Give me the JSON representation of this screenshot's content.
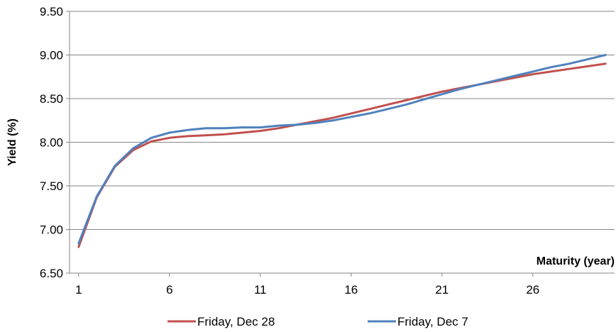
{
  "chart_data": {
    "type": "line",
    "title": "",
    "xlabel": "Maturity (year)",
    "ylabel": "Yield (%)",
    "xlim": [
      0.5,
      30.5
    ],
    "ylim": [
      6.5,
      9.5
    ],
    "x_ticks": [
      1,
      6,
      11,
      16,
      21,
      26
    ],
    "y_ticks": [
      6.5,
      7.0,
      7.5,
      8.0,
      8.5,
      9.0,
      9.5
    ],
    "y_tick_labels": [
      "6.50",
      "7.00",
      "7.50",
      "8.00",
      "8.50",
      "9.00",
      "9.50"
    ],
    "grid": "horizontal",
    "legend_position": "bottom",
    "series": [
      {
        "name": "Friday, Dec 28",
        "color": "#c0504d",
        "x": [
          1,
          2,
          3,
          4,
          5,
          6,
          7,
          8,
          9,
          10,
          11,
          12,
          13,
          14,
          15,
          16,
          17,
          18,
          19,
          20,
          21,
          22,
          23,
          24,
          25,
          26,
          27,
          28,
          29,
          30
        ],
        "y": [
          6.8,
          7.37,
          7.72,
          7.91,
          8.01,
          8.05,
          8.07,
          8.08,
          8.09,
          8.11,
          8.13,
          8.16,
          8.2,
          8.24,
          8.28,
          8.33,
          8.38,
          8.43,
          8.48,
          8.53,
          8.58,
          8.62,
          8.66,
          8.7,
          8.74,
          8.78,
          8.81,
          8.84,
          8.87,
          8.9
        ]
      },
      {
        "name": "Friday, Dec 7",
        "color": "#4f81bd",
        "x": [
          1,
          2,
          3,
          4,
          5,
          6,
          7,
          8,
          9,
          10,
          11,
          12,
          13,
          14,
          15,
          16,
          17,
          18,
          19,
          20,
          21,
          22,
          23,
          24,
          25,
          26,
          27,
          28,
          29,
          30
        ],
        "y": [
          6.84,
          7.38,
          7.73,
          7.93,
          8.05,
          8.11,
          8.14,
          8.16,
          8.16,
          8.17,
          8.17,
          8.19,
          8.2,
          8.22,
          8.25,
          8.29,
          8.33,
          8.38,
          8.43,
          8.49,
          8.55,
          8.61,
          8.66,
          8.71,
          8.76,
          8.81,
          8.86,
          8.9,
          8.95,
          9.0
        ]
      }
    ]
  }
}
